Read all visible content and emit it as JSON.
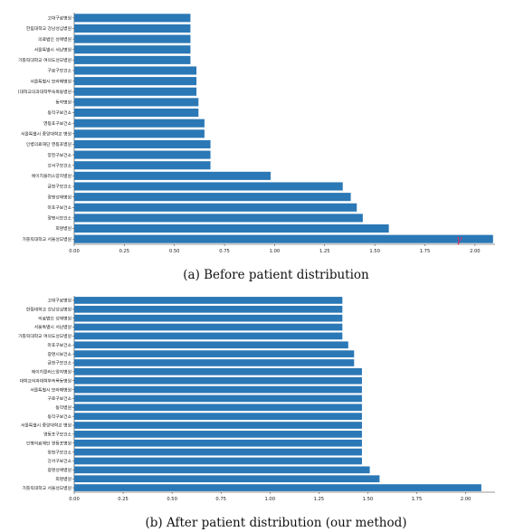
{
  "chart_data": [
    {
      "type": "bar",
      "orientation": "horizontal",
      "caption": "(a) Before patient distribution",
      "color": "#2b78b6",
      "xlim": [
        0,
        2.1
      ],
      "xticks": [
        "0.00",
        "0.25",
        "0.50",
        "0.75",
        "1.00",
        "1.25",
        "1.50",
        "1.75",
        "2.00"
      ],
      "categories": [
        "고대구로병원",
        "한림대학교 강남성심병원",
        "의료법인 성애병원",
        "서울특별시 서남병원",
        "가톨릭대학교 여의도성모병원",
        "구로구보건소",
        "서울특별시 보라매병원",
        "(대학교의과대학부속목동병원",
        "동작병원",
        "동작구보건소",
        "영등포구보건소",
        "서울특별시 중앙대학교 병원",
        "인병의료재단 영등포병원",
        "양천구보건소",
        "강서구보건소",
        "에이치플러스양지병원",
        "금천구보건소",
        "광명성애병원",
        "마포구보건소",
        "광명시보건소",
        "희명병원",
        "가톨릭대학교 서울성모병원"
      ],
      "values": [
        0.58,
        0.58,
        0.58,
        0.58,
        0.58,
        0.61,
        0.61,
        0.61,
        0.62,
        0.62,
        0.65,
        0.65,
        0.68,
        0.68,
        0.68,
        0.98,
        1.34,
        1.38,
        1.41,
        1.44,
        1.57,
        2.09
      ],
      "annotation": "γ",
      "annotation_color": "#d62f6a"
    },
    {
      "type": "bar",
      "orientation": "horizontal",
      "caption": "(b) After patient distribution (our method)",
      "color": "#2b78b6",
      "xlim": [
        0,
        2.15
      ],
      "xticks": [
        "0.00",
        "0.25",
        "0.50",
        "0.75",
        "1.00",
        "1.25",
        "1.50",
        "1.75",
        "2.00"
      ],
      "categories": [
        "고대구로병원",
        "한림대학교 강남성심병원",
        "의료법인 성애병원",
        "서울특별시 서남병원",
        "가톨릭대학교 여의도성모병원",
        "마포구보건소",
        "광명시보건소",
        "금천구보건소",
        "에이치플러스양지병원",
        "대학교의과대학부속목동병원",
        "서울특별시 보라매병원",
        "구로구보건소",
        "동작병원",
        "동작구보건소",
        "서울특별시 중앙대학교 병원",
        "영등포구보건소",
        "인병의료재단 영등포병원",
        "양천구보건소",
        "강서구보건소",
        "광명성애병원",
        "희명병원",
        "가톨릭대학교 서울성모병원"
      ],
      "values": [
        1.37,
        1.37,
        1.37,
        1.37,
        1.37,
        1.4,
        1.43,
        1.43,
        1.47,
        1.47,
        1.47,
        1.47,
        1.47,
        1.47,
        1.47,
        1.47,
        1.47,
        1.47,
        1.47,
        1.51,
        1.56,
        2.08
      ]
    }
  ]
}
